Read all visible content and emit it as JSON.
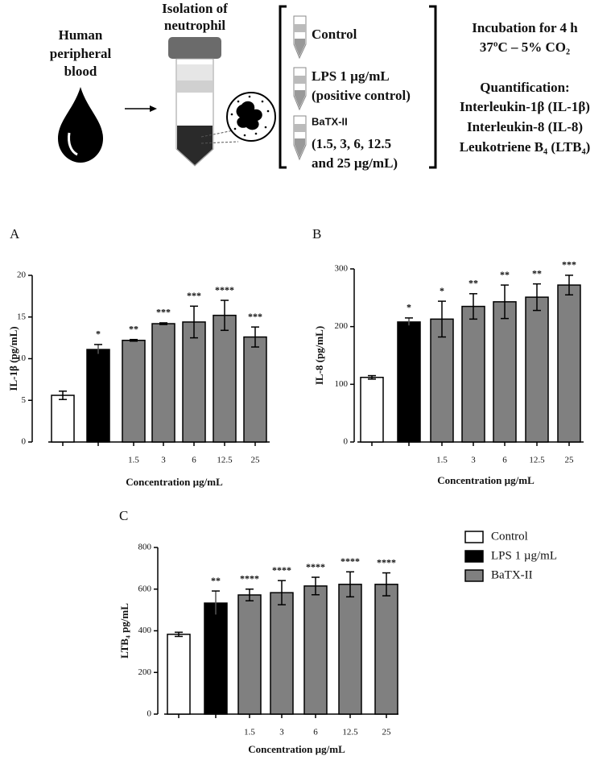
{
  "diagram": {
    "blood": [
      "Human",
      "peripheral",
      "blood"
    ],
    "isolation": [
      "Isolation of",
      "neutrophil"
    ],
    "control": "Control",
    "lps": [
      "LPS 1 µg/mL",
      "(positive control)"
    ],
    "batx": "BaTX-II",
    "batx_doses": [
      "(1.5, 3, 6, 12.5",
      "and 25 µg/mL)"
    ],
    "incubation": [
      "Incubation for 4 h",
      "37ºC – 5% CO₂"
    ],
    "quantification": [
      "Quantification:",
      "Interleukin-1β (IL-1β)",
      "Interleukin-8 (IL-8)",
      "Leukotriene B₄ (LTB₄)"
    ]
  },
  "chart_data": [
    {
      "type": "bar",
      "panel": "A",
      "ylabel": "IL-1β (pg/mL)",
      "xlabel": "Concentration µg/mL",
      "categories": [
        null,
        null,
        "1.5",
        "3",
        "6",
        "12.5",
        "25"
      ],
      "values": [
        5.6,
        11.1,
        12.2,
        14.2,
        14.4,
        15.2,
        12.6
      ],
      "errors": [
        0.5,
        0.6,
        0.1,
        0.1,
        1.9,
        1.8,
        1.2
      ],
      "stars": [
        null,
        "*",
        "**",
        "***",
        "***",
        "****",
        "***"
      ],
      "colors": [
        "#ffffff",
        "#000000",
        "#808080",
        "#808080",
        "#808080",
        "#808080",
        "#808080"
      ],
      "ylim": [
        0,
        20
      ],
      "yticks": [
        0,
        5,
        10,
        15,
        20
      ]
    },
    {
      "type": "bar",
      "panel": "B",
      "ylabel": "IL-8 (pg/mL)",
      "xlabel": "Concentration µg/mL",
      "categories": [
        null,
        null,
        "1.5",
        "3",
        "6",
        "12.5",
        "25"
      ],
      "values": [
        112,
        208,
        213,
        235,
        243,
        251,
        272
      ],
      "errors": [
        3,
        7,
        31,
        22,
        29,
        23,
        17
      ],
      "stars": [
        null,
        "*",
        "*",
        "**",
        "**",
        "**",
        "***"
      ],
      "colors": [
        "#ffffff",
        "#000000",
        "#808080",
        "#808080",
        "#808080",
        "#808080",
        "#808080"
      ],
      "ylim": [
        0,
        300
      ],
      "yticks": [
        0,
        100,
        200,
        300
      ]
    },
    {
      "type": "bar",
      "panel": "C",
      "ylabel": "LTB₄ pg/mL",
      "xlabel": "Concentration µg/mL",
      "categories": [
        null,
        null,
        "1.5",
        "3",
        "6",
        "12.5",
        "25"
      ],
      "values": [
        383,
        533,
        572,
        583,
        615,
        623,
        623
      ],
      "errors": [
        10,
        58,
        28,
        58,
        42,
        60,
        55
      ],
      "stars": [
        null,
        "**",
        "****",
        "****",
        "****",
        "****",
        "****"
      ],
      "colors": [
        "#ffffff",
        "#000000",
        "#808080",
        "#808080",
        "#808080",
        "#808080",
        "#808080"
      ],
      "ylim": [
        0,
        800
      ],
      "yticks": [
        0,
        200,
        400,
        600,
        800
      ],
      "legend": [
        {
          "name": "Control",
          "color": "#ffffff"
        },
        {
          "name": "LPS 1 µg/mL",
          "color": "#000000"
        },
        {
          "name": "BaTX-II",
          "color": "#808080"
        }
      ]
    }
  ]
}
